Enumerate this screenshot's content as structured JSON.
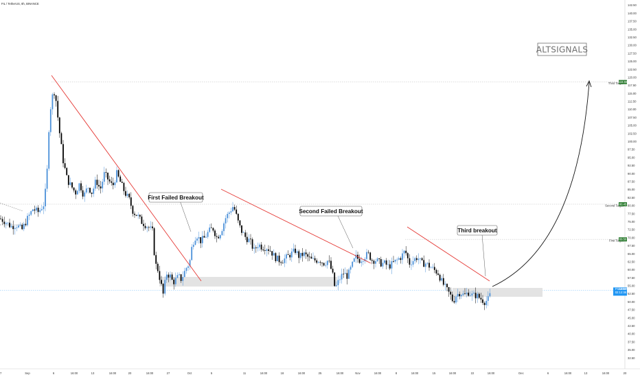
{
  "symbol_line": "FIL / TetherUS, 8h, BINANCE",
  "brand": "ALTSIGNALS",
  "callouts": {
    "first": "First Failed Breakout",
    "second": "Second Failed Breakout",
    "third": "Third breakout"
  },
  "targets": {
    "third": {
      "label": "Third Target",
      "tag": "118.56",
      "value": 118.56
    },
    "second": {
      "label": "Second Target",
      "tag": "80.45",
      "value": 80.45
    },
    "first": {
      "label": "First Target",
      "tag": "69.50",
      "value": 69.5
    }
  },
  "current_price": {
    "tag_symbol": "FILUSDT",
    "tag_value": "53.65",
    "tag_time": "02:12:38",
    "value": 53.65
  },
  "colors": {
    "up": "#4a90d9",
    "down": "#000000",
    "trendline": "#e53935",
    "support_zone": "#e3e3e3",
    "target_line": "#c8c8c8",
    "price_line": "#90caf9",
    "current_tag": "#2196f3",
    "target_tag": "#2e7d32"
  },
  "chart_data": {
    "type": "candlestick",
    "title": "FIL / TetherUS, 8h, BINANCE",
    "xlabel": "",
    "ylabel": "",
    "ylim": [
      30,
      145
    ],
    "y_ticks": [
      "145.00",
      "142.50",
      "140.00",
      "137.50",
      "135.00",
      "132.50",
      "130.00",
      "127.50",
      "125.00",
      "122.50",
      "120.00",
      "117.50",
      "115.00",
      "112.50",
      "110.00",
      "107.50",
      "105.00",
      "102.50",
      "100.00",
      "97.50",
      "95.00",
      "92.50",
      "90.00",
      "87.50",
      "85.00",
      "82.50",
      "80.00",
      "77.50",
      "75.00",
      "72.50",
      "70.00",
      "67.50",
      "65.00",
      "62.50",
      "60.00",
      "57.50",
      "55.00",
      "52.50",
      "50.00",
      "47.50",
      "45.00",
      "42.50",
      "40.00",
      "37.50",
      "35.00",
      "32.50"
    ],
    "x_ticks": [
      "27",
      "Sep",
      "6",
      "16:00",
      "13",
      "16:00",
      "20",
      "16:00",
      "27",
      "Oct",
      "5",
      "11",
      "16:00",
      "18",
      "16:00",
      "25",
      "16:00",
      "Nov",
      "16:00",
      "8",
      "16:00",
      "15",
      "16:00",
      "22",
      "16:00",
      "Dec",
      "6",
      "16:00",
      "13",
      "16:00",
      "20"
    ],
    "x_tick_positions": [
      0,
      40,
      78,
      108,
      135,
      164,
      189,
      218,
      245,
      276,
      308,
      356,
      384,
      411,
      439,
      466,
      495,
      521,
      550,
      577,
      604,
      632,
      659,
      688,
      715,
      759,
      798,
      827,
      853,
      882,
      910
    ],
    "price_points": [
      [
        0,
        76
      ],
      [
        8,
        75
      ],
      [
        16,
        73.5
      ],
      [
        24,
        74
      ],
      [
        32,
        72.5
      ],
      [
        40,
        76
      ],
      [
        48,
        79
      ],
      [
        56,
        78
      ],
      [
        64,
        80.5
      ],
      [
        68,
        88
      ],
      [
        72,
        108
      ],
      [
        76,
        114
      ],
      [
        80,
        116
      ],
      [
        86,
        104
      ],
      [
        92,
        94
      ],
      [
        98,
        88
      ],
      [
        104,
        86
      ],
      [
        110,
        84
      ],
      [
        116,
        87
      ],
      [
        122,
        83
      ],
      [
        128,
        86
      ],
      [
        134,
        84
      ],
      [
        140,
        88
      ],
      [
        146,
        85
      ],
      [
        152,
        90
      ],
      [
        158,
        88
      ],
      [
        164,
        86
      ],
      [
        170,
        90
      ],
      [
        176,
        87
      ],
      [
        182,
        84
      ],
      [
        188,
        82
      ],
      [
        194,
        78
      ],
      [
        200,
        77
      ],
      [
        206,
        75
      ],
      [
        212,
        74
      ],
      [
        218,
        73
      ],
      [
        222,
        72
      ],
      [
        226,
        62
      ],
      [
        230,
        60
      ],
      [
        234,
        56
      ],
      [
        238,
        52
      ],
      [
        242,
        59
      ],
      [
        248,
        58
      ],
      [
        252,
        56
      ],
      [
        256,
        57
      ],
      [
        260,
        58
      ],
      [
        264,
        57
      ],
      [
        268,
        59
      ],
      [
        272,
        61
      ],
      [
        276,
        62
      ],
      [
        280,
        68
      ],
      [
        286,
        71
      ],
      [
        292,
        69
      ],
      [
        298,
        70
      ],
      [
        304,
        72
      ],
      [
        310,
        73
      ],
      [
        316,
        70
      ],
      [
        322,
        72
      ],
      [
        328,
        76
      ],
      [
        334,
        78
      ],
      [
        340,
        80
      ],
      [
        344,
        77
      ],
      [
        348,
        74
      ],
      [
        352,
        72
      ],
      [
        358,
        70
      ],
      [
        364,
        69
      ],
      [
        370,
        66
      ],
      [
        376,
        68
      ],
      [
        382,
        67
      ],
      [
        388,
        67
      ],
      [
        394,
        66
      ],
      [
        400,
        64
      ],
      [
        406,
        63
      ],
      [
        412,
        63
      ],
      [
        418,
        64
      ],
      [
        424,
        65
      ],
      [
        430,
        66
      ],
      [
        436,
        64
      ],
      [
        442,
        65
      ],
      [
        448,
        64
      ],
      [
        454,
        63
      ],
      [
        460,
        63
      ],
      [
        466,
        63
      ],
      [
        472,
        62
      ],
      [
        478,
        63
      ],
      [
        484,
        59
      ],
      [
        488,
        54
      ],
      [
        494,
        57
      ],
      [
        500,
        59
      ],
      [
        506,
        58
      ],
      [
        512,
        61
      ],
      [
        518,
        64
      ],
      [
        524,
        63
      ],
      [
        530,
        64
      ],
      [
        536,
        65
      ],
      [
        542,
        63
      ],
      [
        548,
        63
      ],
      [
        554,
        62
      ],
      [
        560,
        62
      ],
      [
        566,
        61
      ],
      [
        572,
        62
      ],
      [
        578,
        63
      ],
      [
        584,
        64
      ],
      [
        590,
        66
      ],
      [
        596,
        62
      ],
      [
        602,
        63
      ],
      [
        608,
        64
      ],
      [
        614,
        62
      ],
      [
        620,
        62
      ],
      [
        626,
        61
      ],
      [
        632,
        60
      ],
      [
        638,
        59
      ],
      [
        644,
        56
      ],
      [
        650,
        54
      ],
      [
        656,
        52
      ],
      [
        660,
        50
      ],
      [
        664,
        52
      ],
      [
        670,
        53
      ],
      [
        676,
        52
      ],
      [
        682,
        53
      ],
      [
        688,
        52
      ],
      [
        694,
        52
      ],
      [
        700,
        51
      ],
      [
        706,
        50
      ],
      [
        712,
        51
      ],
      [
        716,
        54
      ]
    ],
    "annotations": [
      "First Failed Breakout",
      "Second Failed Breakout",
      "Third breakout",
      "Third Target",
      "Second Target",
      "First Target"
    ]
  }
}
